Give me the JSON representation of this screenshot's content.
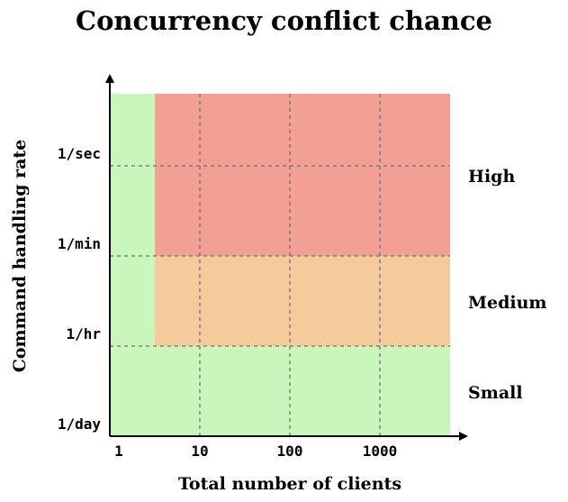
{
  "chart_data": {
    "type": "heatmap",
    "title": "Concurrency conflict chance",
    "xlabel": "Total number of clients",
    "ylabel": "Command handling rate",
    "x_ticks": [
      "1",
      "10",
      "100",
      "1000"
    ],
    "y_ticks": [
      "1/day",
      "1/hr",
      "1/min",
      "1/sec"
    ],
    "zones": [
      {
        "name": "Small",
        "color": "#c9f7bb",
        "rule": "clients = 1 (any rate), or rate below 1/hr"
      },
      {
        "name": "Medium",
        "color": "#f5ca9d",
        "rule": "clients > 1 and rate between 1/hr and 1/min"
      },
      {
        "name": "High",
        "color": "#f2a094",
        "rule": "clients > 1 and rate above 1/min"
      }
    ],
    "zone_labels": [
      "High",
      "Medium",
      "Small"
    ],
    "grid": true
  }
}
